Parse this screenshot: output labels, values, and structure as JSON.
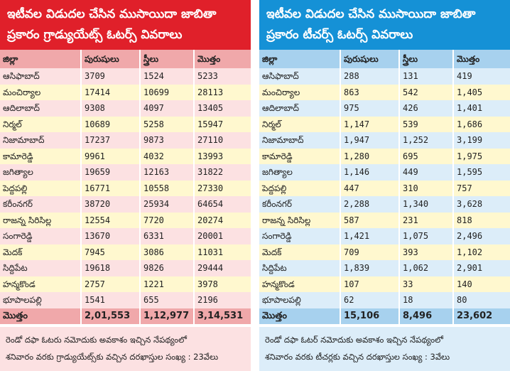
{
  "graduates": {
    "title_line1": "ఇటీవల విడుదల చేసిన ముసాయిదా జాబితా",
    "title_line2": "ప్రకారం గ్రాడ్యుయేట్స్ ఓటర్స్ వివరాలు",
    "headers": [
      "జిల్లా",
      "పురుషులు",
      "స్త్రీలు",
      "మొత్తం"
    ],
    "rows": [
      [
        "ఆసిఫాబాద్",
        "3709",
        "1524",
        "5233"
      ],
      [
        "మంచిర్యాల",
        "17414",
        "10699",
        "28113"
      ],
      [
        "ఆదిలాబాద్",
        "9308",
        "4097",
        "13405"
      ],
      [
        "నిర్మల్",
        "10689",
        "5258",
        "15947"
      ],
      [
        "నిజామాబాద్",
        "17237",
        "9873",
        "27110"
      ],
      [
        "కామారెడ్డి",
        "9961",
        "4032",
        "13993"
      ],
      [
        "జగిత్యాల",
        "19659",
        "12163",
        "31822"
      ],
      [
        "పెద్దపల్లి",
        "16771",
        "10558",
        "27330"
      ],
      [
        "కరీంనగర్",
        "38720",
        "25934",
        "64654"
      ],
      [
        "రాజన్న సిరిసిల్ల",
        "12554",
        "7720",
        "20274"
      ],
      [
        "సంగారెడ్డి",
        "13670",
        "6331",
        "20001"
      ],
      [
        "మెదక్",
        "7945",
        "3086",
        "11031"
      ],
      [
        "సిద్దిపేట",
        "19618",
        "9826",
        "29444"
      ],
      [
        "హన్మకొండ",
        "2757",
        "1221",
        "3978"
      ],
      [
        "భూపాలపల్లి",
        "1541",
        "655",
        "2196"
      ]
    ],
    "total": [
      "మొత్తం",
      "2,01,553",
      "1,12,977",
      "3,14,531"
    ],
    "note_line1": "రెండో దఫా ఓటరు నమోదుకు అవకాశం ఇచ్చిన నేపథ్యంలో",
    "note_line2": "శనివారం వరకు గ్రాడ్యుయేట్స్‌కు వచ్చిన దరఖాస్తుల సంఖ్య : 23వేలు"
  },
  "teachers": {
    "title_line1": "ఇటీవల విడుదల చేసిన ముసాయిదా జాబితా",
    "title_line2": "ప్రకారం టీచర్స్ ఓటర్స్ వివరాలు",
    "headers": [
      "జిల్లా",
      "పురుషులు",
      "స్త్రీలు",
      "మొత్తం"
    ],
    "rows": [
      [
        "ఆసిఫాబాద్",
        "288",
        "131",
        "419"
      ],
      [
        "మంచిర్యాల",
        "863",
        "542",
        "1,405"
      ],
      [
        "ఆదిలాబాద్",
        "975",
        "426",
        "1,401"
      ],
      [
        "నిర్మల్",
        "1,147",
        "539",
        "1,686"
      ],
      [
        "నిజామాబాద్",
        "1,947",
        "1,252",
        "3,199"
      ],
      [
        "కామారెడ్డి",
        "1,280",
        "695",
        "1,975"
      ],
      [
        "జగిత్యాల",
        "1,146",
        "449",
        "1,595"
      ],
      [
        "పెద్దపల్లి",
        "447",
        "310",
        "757"
      ],
      [
        "కరీంనగర్",
        "2,288",
        "1,340",
        "3,628"
      ],
      [
        "రాజన్న సిరిసిల్ల",
        "587",
        "231",
        "818"
      ],
      [
        "సంగారెడ్డి",
        "1,421",
        "1,075",
        "2,496"
      ],
      [
        "మెదక్",
        "709",
        "393",
        "1,102"
      ],
      [
        "సిద్దిపేట",
        "1,839",
        "1,062",
        "2,901"
      ],
      [
        "హన్మకొండ",
        "107",
        "33",
        "140"
      ],
      [
        "భూపాలపల్లి",
        "62",
        "18",
        "80"
      ]
    ],
    "total": [
      "మొత్తం",
      "15,106",
      "8,496",
      "23,602"
    ],
    "note_line1": "రెండో దఫా ఓటర్ నమోదుకు అవకాశం ఇచ్చిన నేపథ్యంలో",
    "note_line2": "శనివారం వరకు టీచర్లకు వచ్చిన దరఖాస్తుల సంఖ్య : 3వేలు"
  }
}
